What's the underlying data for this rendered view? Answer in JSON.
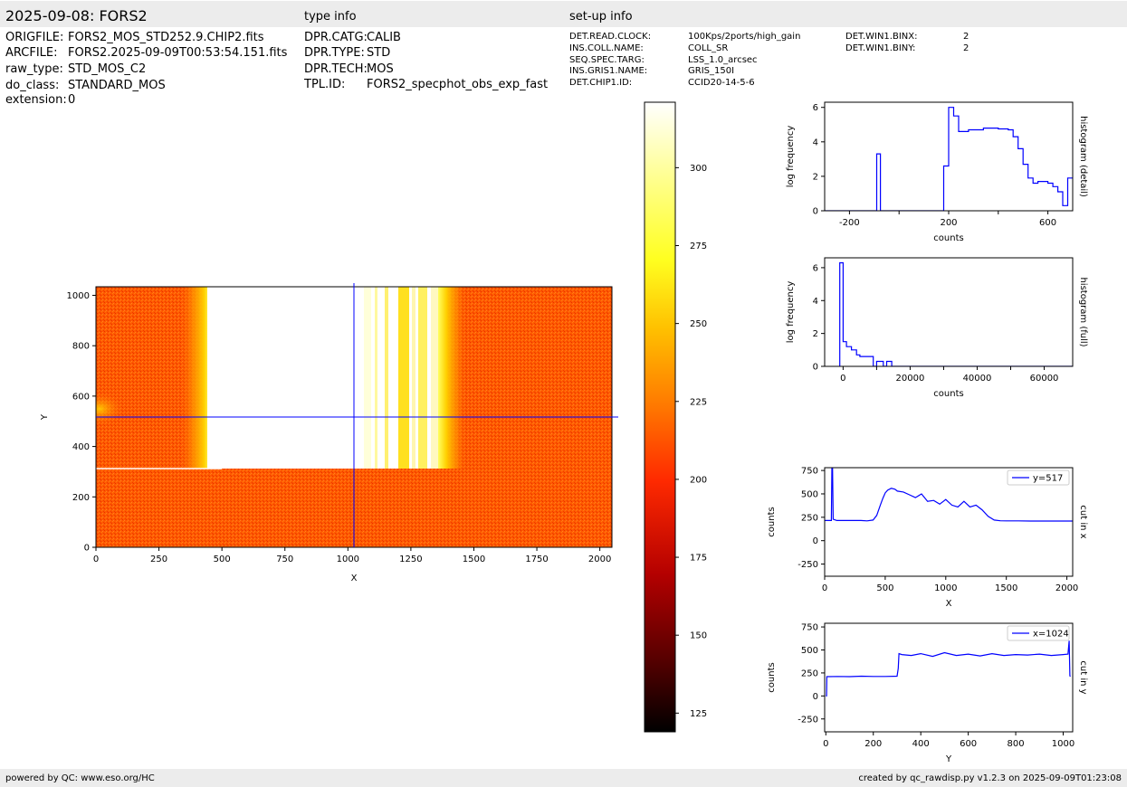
{
  "header": {
    "title": "2025-09-08: FORS2",
    "type_info_label": "type info",
    "setup_info_label": "set-up info"
  },
  "file_info": [
    {
      "key": "ORIGFILE:",
      "value": "FORS2_MOS_STD252.9.CHIP2.fits"
    },
    {
      "key": "ARCFILE:",
      "value": "FORS2.2025-09-09T00:53:54.151.fits"
    },
    {
      "key": "raw_type:",
      "value": "STD_MOS_C2"
    },
    {
      "key": "do_class:",
      "value": "STANDARD_MOS"
    },
    {
      "key": "extension:",
      "value": "0"
    }
  ],
  "type_info": [
    {
      "key": "DPR.CATG:",
      "value": "CALIB"
    },
    {
      "key": "DPR.TYPE:",
      "value": "STD"
    },
    {
      "key": "DPR.TECH:",
      "value": "MOS"
    },
    {
      "key": "TPL.ID:",
      "value": "FORS2_specphot_obs_exp_fast"
    }
  ],
  "setup_info": [
    {
      "key": "DET.READ.CLOCK:",
      "value": "100Kps/2ports/high_gain"
    },
    {
      "key": "INS.COLL.NAME:",
      "value": "COLL_SR"
    },
    {
      "key": "SEQ.SPEC.TARG:",
      "value": "LSS_1.0_arcsec"
    },
    {
      "key": "INS.GRIS1.NAME:",
      "value": "GRIS_150I"
    },
    {
      "key": "DET.CHIP1.ID:",
      "value": "CCID20-14-5-6"
    }
  ],
  "setup_info2": [
    {
      "key": "DET.WIN1.BINX:",
      "value": "2"
    },
    {
      "key": "DET.WIN1.BINY:",
      "value": "2"
    }
  ],
  "footer": {
    "left": "powered by QC: www.eso.org/HC",
    "right": "created by qc_rawdisp.py v1.2.3 on 2025-09-09T01:23:08"
  },
  "colors": {
    "line": "#0000ff",
    "colormap": [
      "#000000",
      "#5a0000",
      "#b40000",
      "#ff2a00",
      "#ff7a00",
      "#ffc000",
      "#ffff20",
      "#ffff90",
      "#ffffff"
    ]
  },
  "chart_data": [
    {
      "type": "heatmap",
      "xlabel": "X",
      "ylabel": "Y",
      "xlim": [
        0,
        2048
      ],
      "ylim": [
        0,
        1034
      ],
      "xticks": [
        "0",
        "250",
        "500",
        "750",
        "1000",
        "1250",
        "1500",
        "1750",
        "2000"
      ],
      "yticks": [
        "0",
        "200",
        "400",
        "600",
        "800",
        "1000"
      ],
      "crosshair": {
        "x": 1024,
        "y": 517
      },
      "colorbar": {
        "range": [
          119,
          321
        ],
        "ticks": [
          "125",
          "150",
          "175",
          "200",
          "225",
          "250",
          "275",
          "300"
        ]
      },
      "description_regions": {
        "background_level": 210,
        "saturated_band_x": [
          440,
          1390
        ],
        "saturated_band_y": [
          310,
          1034
        ]
      }
    },
    {
      "type": "line",
      "name": "histogram (detail)",
      "xlabel": "counts",
      "ylabel": "log frequency",
      "xlim": [
        -300,
        700
      ],
      "ylim": [
        0,
        6.3
      ],
      "xticks": [
        "-200",
        "200",
        "600"
      ],
      "yticks": [
        "0",
        "2",
        "4",
        "6"
      ],
      "x": [
        -300,
        -90,
        -90,
        -75,
        -75,
        180,
        180,
        200,
        200,
        220,
        220,
        240,
        240,
        260,
        260,
        280,
        280,
        300,
        300,
        320,
        320,
        340,
        340,
        360,
        360,
        380,
        380,
        400,
        400,
        420,
        420,
        440,
        440,
        460,
        460,
        480,
        480,
        500,
        500,
        520,
        520,
        540,
        540,
        560,
        560,
        580,
        580,
        600,
        600,
        620,
        620,
        640,
        640,
        660,
        660,
        680,
        680,
        700
      ],
      "y": [
        0,
        0,
        3.3,
        3.3,
        0,
        0,
        2.6,
        2.6,
        6.0,
        6.0,
        5.5,
        5.5,
        4.6,
        4.6,
        4.6,
        4.6,
        4.7,
        4.7,
        4.7,
        4.7,
        4.7,
        4.7,
        4.8,
        4.8,
        4.8,
        4.8,
        4.8,
        4.8,
        4.75,
        4.75,
        4.75,
        4.75,
        4.7,
        4.7,
        4.3,
        4.3,
        3.6,
        3.6,
        2.7,
        2.7,
        1.9,
        1.9,
        1.6,
        1.6,
        1.7,
        1.7,
        1.7,
        1.7,
        1.6,
        1.6,
        1.4,
        1.4,
        1.1,
        1.1,
        0.3,
        0.3,
        1.9,
        1.9
      ]
    },
    {
      "type": "line",
      "name": "histogram (full)",
      "xlabel": "counts",
      "ylabel": "log frequency",
      "xlim": [
        -5500,
        68500
      ],
      "ylim": [
        0,
        6.6
      ],
      "xticks": [
        "0",
        "20000",
        "40000",
        "60000"
      ],
      "yticks": [
        "0",
        "2",
        "4",
        "6"
      ],
      "x": [
        -1000,
        -1000,
        0,
        0,
        1000,
        1000,
        2500,
        2500,
        4000,
        4000,
        5000,
        5000,
        9000,
        9000,
        10000,
        10000,
        12000,
        12000,
        13000,
        13000,
        14500,
        14500,
        68500
      ],
      "y": [
        0,
        6.3,
        6.3,
        1.5,
        1.5,
        1.2,
        1.2,
        1.0,
        1.0,
        0.7,
        0.7,
        0.6,
        0.6,
        0,
        0,
        0.3,
        0.3,
        0,
        0,
        0.3,
        0.3,
        0,
        0
      ]
    },
    {
      "type": "line",
      "name": "cut in x",
      "legend": "y=517",
      "xlabel": "X",
      "ylabel": "counts",
      "xlim": [
        0,
        2048
      ],
      "ylim": [
        -380,
        780
      ],
      "xticks": [
        "0",
        "500",
        "1000",
        "1500",
        "2000"
      ],
      "yticks": [
        "-250",
        "0",
        "250",
        "500",
        "750"
      ],
      "x": [
        0,
        55,
        60,
        65,
        70,
        80,
        100,
        200,
        300,
        350,
        400,
        430,
        460,
        480,
        500,
        520,
        550,
        580,
        600,
        650,
        700,
        750,
        800,
        850,
        900,
        950,
        1000,
        1050,
        1100,
        1150,
        1200,
        1250,
        1300,
        1350,
        1400,
        1450,
        1500,
        1600,
        1700,
        1800,
        1900,
        2000,
        2048
      ],
      "y": [
        215,
        215,
        780,
        780,
        230,
        225,
        215,
        215,
        215,
        212,
        220,
        270,
        380,
        450,
        510,
        540,
        560,
        550,
        530,
        520,
        490,
        460,
        500,
        420,
        430,
        390,
        440,
        380,
        360,
        420,
        360,
        380,
        330,
        260,
        220,
        213,
        212,
        212,
        210,
        210,
        210,
        210,
        210
      ]
    },
    {
      "type": "line",
      "name": "cut in y",
      "legend": "x=1024",
      "xlabel": "Y",
      "ylabel": "counts",
      "xlim": [
        -5,
        1040
      ],
      "ylim": [
        -390,
        790
      ],
      "xticks": [
        "0",
        "200",
        "400",
        "600",
        "800",
        "1000"
      ],
      "yticks": [
        "-250",
        "0",
        "250",
        "500",
        "750"
      ],
      "x": [
        0,
        3,
        4,
        10,
        50,
        100,
        150,
        200,
        250,
        300,
        305,
        308,
        320,
        360,
        400,
        450,
        500,
        550,
        600,
        650,
        700,
        750,
        800,
        850,
        900,
        950,
        1000,
        1020,
        1025,
        1028,
        1030
      ],
      "y": [
        0,
        0,
        210,
        210,
        212,
        210,
        215,
        212,
        212,
        215,
        300,
        460,
        450,
        440,
        460,
        430,
        470,
        440,
        455,
        435,
        460,
        440,
        450,
        445,
        455,
        440,
        450,
        455,
        600,
        220,
        210
      ]
    }
  ]
}
